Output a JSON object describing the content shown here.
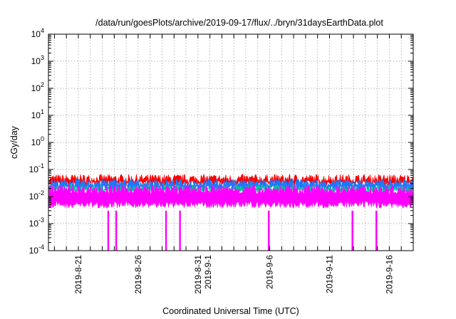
{
  "chart_data": {
    "type": "area",
    "title": "/data/run/goesPlots/archive/2019-09-17/flux/../bryn/31daysEarthData.plot",
    "xlabel": "Coordinated Universal Time (UTC)",
    "ylabel": "cGy/day",
    "xlim": [
      "2019-08-18T12:00",
      "2019-09-18T00:00"
    ],
    "ylim": [
      0.0001,
      10000
    ],
    "y_scale": "log",
    "grid": true,
    "y_ticks": [
      {
        "base": "10",
        "exp": "-4",
        "value": 0.0001
      },
      {
        "base": "10",
        "exp": "-3",
        "value": 0.001
      },
      {
        "base": "10",
        "exp": "-2",
        "value": 0.01
      },
      {
        "base": "10",
        "exp": "-1",
        "value": 0.1
      },
      {
        "base": "10",
        "exp": "0",
        "value": 1
      },
      {
        "base": "10",
        "exp": "1",
        "value": 10
      },
      {
        "base": "10",
        "exp": "2",
        "value": 100
      },
      {
        "base": "10",
        "exp": "3",
        "value": 1000
      },
      {
        "base": "10",
        "exp": "4",
        "value": 10000
      }
    ],
    "x_ticks": [
      {
        "date": "2019-08-21",
        "labels": [
          "2019-8-21"
        ]
      },
      {
        "date": "2019-08-26",
        "labels": [
          "2019-8-26"
        ]
      },
      {
        "date": "2019-08-31",
        "labels": [
          "2019-8-31",
          "2019-9-1"
        ]
      },
      {
        "date": "2019-09-06",
        "labels": [
          "2019-9-6"
        ]
      },
      {
        "date": "2019-09-11",
        "labels": [
          "2019-9-11"
        ]
      },
      {
        "date": "2019-09-16",
        "labels": [
          "2019-9-16"
        ]
      }
    ],
    "series": [
      {
        "color": "#ff0000",
        "typical": 0.045,
        "min": 0.03,
        "max": 0.1
      },
      {
        "color": "#1f77ff",
        "typical": 0.032,
        "min": 0.02,
        "max": 0.06
      },
      {
        "color": "#00c896",
        "typical": 0.02,
        "min": 0.012,
        "max": 0.035
      },
      {
        "color": "#ff00ff",
        "typical_low": 0.005,
        "typical_high": 0.018,
        "min": 0.003
      }
    ],
    "magenta_dropouts": [
      "2019-08-23T12:00",
      "2019-08-24T04:00",
      "2019-08-28T08:00",
      "2019-08-29T12:00",
      "2019-09-05T22:00",
      "2019-09-12T22:00",
      "2019-09-14T22:00"
    ]
  }
}
